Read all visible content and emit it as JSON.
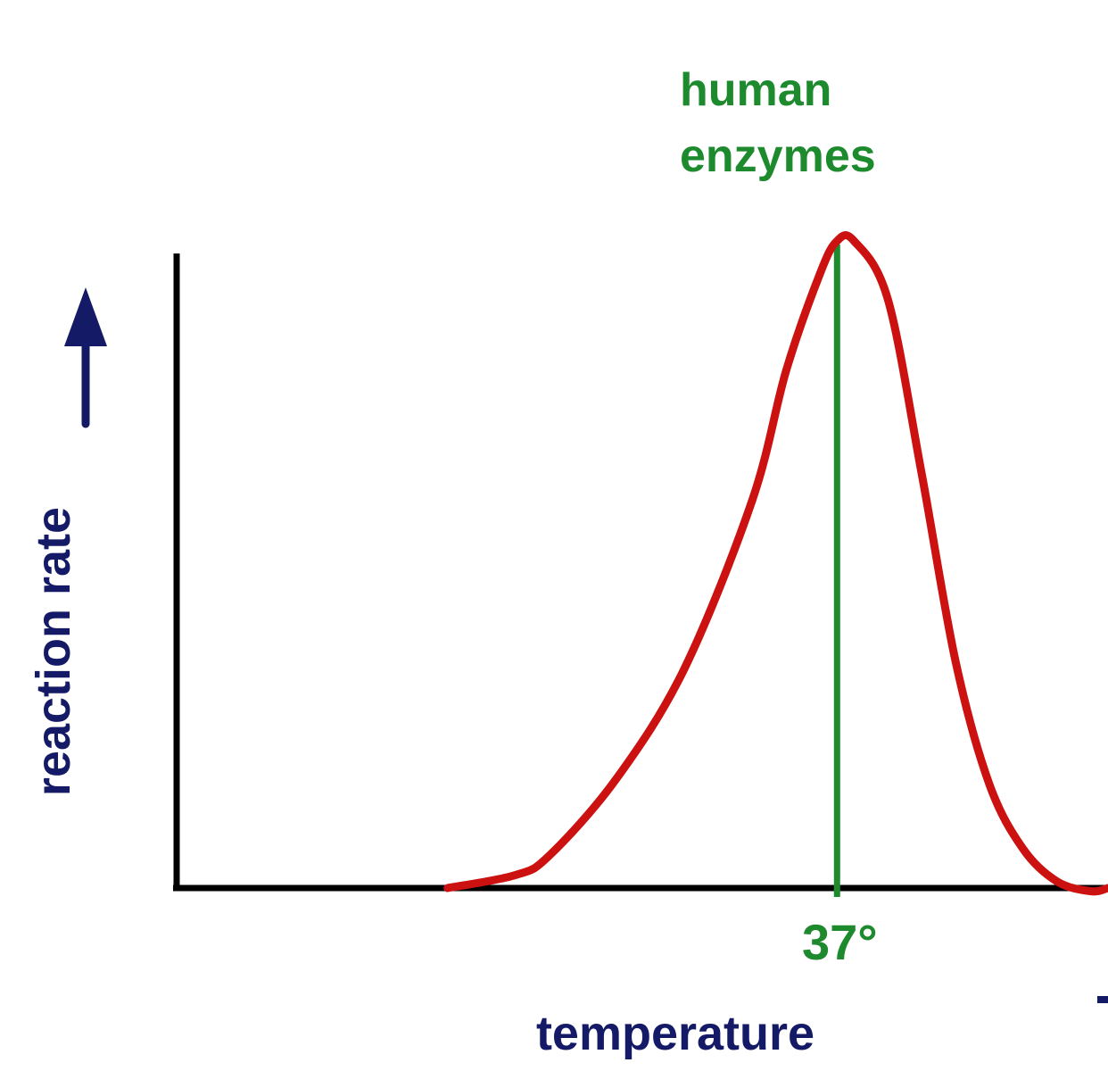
{
  "chart_data": {
    "type": "line",
    "xlabel": "temperature",
    "ylabel": "reaction rate",
    "annotation": {
      "label_lines": [
        "human",
        "enzymes"
      ],
      "x": 37,
      "tick_label": "37°"
    },
    "series": [
      {
        "x": [
          14,
          18,
          20,
          24,
          28,
          32,
          34,
          36,
          37,
          38,
          40,
          42,
          44,
          46,
          48,
          50,
          52,
          53
        ],
        "y": [
          0,
          0.02,
          0.05,
          0.17,
          0.34,
          0.6,
          0.8,
          0.95,
          1.0,
          1.0,
          0.91,
          0.64,
          0.35,
          0.16,
          0.06,
          0.01,
          -0.005,
          0
        ]
      }
    ],
    "xlim": [
      -2,
      53
    ],
    "ylim": [
      0,
      1
    ],
    "grid": false,
    "legend": "none",
    "colors": {
      "curve": "#cc1111",
      "marker_line": "#1e8a2e",
      "annotation_text": "#1e8a2e",
      "axis_labels": "#141a66",
      "axes": "#000000",
      "arrow": "#141a66"
    }
  }
}
